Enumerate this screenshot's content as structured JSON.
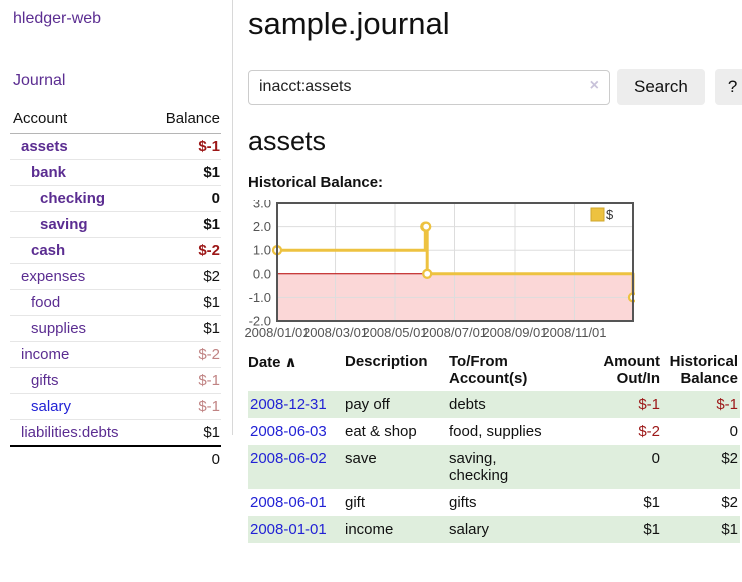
{
  "sidebar": {
    "app_title": "hledger-web",
    "nav": {
      "journal": "Journal"
    },
    "accounts_table": {
      "headers": {
        "account": "Account",
        "balance": "Balance"
      },
      "accounts": [
        {
          "name": "assets",
          "balance": "$-1"
        },
        {
          "name": "bank",
          "balance": "$1"
        },
        {
          "name": "checking",
          "balance": "0"
        },
        {
          "name": "saving",
          "balance": "$1"
        },
        {
          "name": "cash",
          "balance": "$-2"
        },
        {
          "name": "expenses",
          "balance": "$2"
        },
        {
          "name": "food",
          "balance": "$1"
        },
        {
          "name": "supplies",
          "balance": "$1"
        },
        {
          "name": "income",
          "balance": "$-2"
        },
        {
          "name": "gifts",
          "balance": "$-1"
        },
        {
          "name": "salary",
          "balance": "$-1"
        },
        {
          "name": "liabilities:debts",
          "balance": "$1"
        }
      ],
      "total": "0"
    }
  },
  "main": {
    "title": "sample.journal",
    "search": {
      "value": "inacct:assets",
      "clear_icon": "×",
      "button": "Search",
      "help_button": "?"
    },
    "account_heading": "assets",
    "chart_label": "Historical Balance:"
  },
  "chart_data": {
    "type": "line",
    "title": "Historical Balance",
    "step": true,
    "series": [
      {
        "name": "$",
        "points": [
          [
            "2008-01-01",
            1
          ],
          [
            "2008-06-01",
            2
          ],
          [
            "2008-06-02",
            2
          ],
          [
            "2008-06-03",
            0
          ],
          [
            "2008-12-31",
            -1
          ]
        ]
      }
    ],
    "x_range": [
      "2008-01-01",
      "2008-12-31"
    ],
    "ylim": [
      -2,
      3
    ],
    "yticks": [
      {
        "v": 3,
        "label": "3.0"
      },
      {
        "v": 2,
        "label": "2.0"
      },
      {
        "v": 1,
        "label": "1.0"
      },
      {
        "v": 0,
        "label": "0.0"
      },
      {
        "v": -1,
        "label": "-1.0"
      },
      {
        "v": -2,
        "label": "-2.0"
      }
    ],
    "xticks": [
      {
        "date": "2008-01-01",
        "label": "2008/01/01"
      },
      {
        "date": "2008-03-01",
        "label": "2008/03/01"
      },
      {
        "date": "2008-05-01",
        "label": "2008/05/01"
      },
      {
        "date": "2008-07-01",
        "label": "2008/07/01"
      },
      {
        "date": "2008-09-01",
        "label": "2008/09/01"
      },
      {
        "date": "2008-11-01",
        "label": "2008/11/01"
      }
    ],
    "legend": {
      "label": "$",
      "position": "top-right"
    },
    "grid": true,
    "colors": {
      "line": "#edc240",
      "marker_fill": "#ffffff",
      "legend_border": "#cfa72e",
      "negative_region": "#fbd7d7",
      "zero_line": "#bb0000",
      "grid": "#dddddd",
      "border": "#555555",
      "tick_text": "#545454"
    }
  },
  "register": {
    "headers": {
      "date": "Date",
      "sort_indicator": "∧",
      "description": "Description",
      "accounts": "To/From\nAccount(s)",
      "amount": "Amount\nOut/In",
      "balance": "Historical\nBalance"
    },
    "rows": [
      {
        "date": "2008-12-31",
        "description": "pay off",
        "accounts": "debts",
        "amount": "$-1",
        "balance": "$-1"
      },
      {
        "date": "2008-06-03",
        "description": "eat & shop",
        "accounts": "food, supplies",
        "amount": "$-2",
        "balance": "0"
      },
      {
        "date": "2008-06-02",
        "description": "save",
        "accounts": "saving,\nchecking",
        "amount": "0",
        "balance": "$2"
      },
      {
        "date": "2008-06-01",
        "description": "gift",
        "accounts": "gifts",
        "amount": "$1",
        "balance": "$2"
      },
      {
        "date": "2008-01-01",
        "description": "income",
        "accounts": "salary",
        "amount": "$1",
        "balance": "$1"
      }
    ]
  },
  "colors": {
    "link_purple": "#5b2d91",
    "link_blue": "#2222d5",
    "negative_strong": "#9c1717",
    "negative_soft": "#c08383",
    "row_stripe_green": "#dfeedd",
    "button_gray": "#ededed"
  }
}
